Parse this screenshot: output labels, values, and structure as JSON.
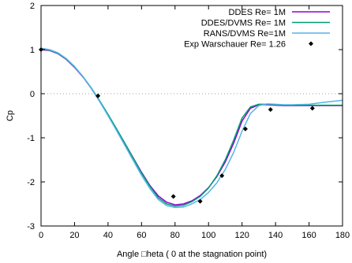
{
  "chart_data": {
    "type": "line",
    "title": "",
    "xlabel": "Angle □heta ( 0 at the stagnation point)",
    "ylabel": "Cp",
    "xlim": [
      0,
      180
    ],
    "ylim": [
      -3,
      2
    ],
    "xticks": [
      0,
      20,
      40,
      60,
      80,
      100,
      120,
      140,
      160,
      180
    ],
    "yticks": [
      -3,
      -2,
      -1,
      0,
      1,
      2
    ],
    "zero_line": "dotted",
    "legend_position": "top-right",
    "series": [
      {
        "name": "DDES Re= 1M",
        "style": "line",
        "color": "#9400d3",
        "x": [
          0,
          5,
          10,
          15,
          20,
          25,
          30,
          35,
          40,
          45,
          50,
          55,
          60,
          65,
          70,
          75,
          80,
          85,
          90,
          95,
          100,
          105,
          110,
          115,
          120,
          125,
          130,
          135,
          140,
          145,
          150,
          160,
          170,
          180
        ],
        "y": [
          1.0,
          0.98,
          0.91,
          0.78,
          0.6,
          0.38,
          0.12,
          -0.17,
          -0.48,
          -0.8,
          -1.12,
          -1.45,
          -1.78,
          -2.08,
          -2.32,
          -2.46,
          -2.52,
          -2.5,
          -2.43,
          -2.31,
          -2.13,
          -1.88,
          -1.55,
          -1.12,
          -0.62,
          -0.33,
          -0.25,
          -0.25,
          -0.26,
          -0.27,
          -0.27,
          -0.27,
          -0.27,
          -0.27
        ]
      },
      {
        "name": "DDES/DVMS Re= 1M",
        "style": "line",
        "color": "#009e73",
        "x": [
          0,
          5,
          10,
          15,
          20,
          25,
          30,
          35,
          40,
          45,
          50,
          55,
          60,
          65,
          70,
          75,
          80,
          85,
          90,
          95,
          100,
          105,
          110,
          115,
          120,
          125,
          130,
          135,
          140,
          145,
          150,
          160,
          170,
          180
        ],
        "y": [
          1.02,
          0.99,
          0.92,
          0.79,
          0.61,
          0.39,
          0.13,
          -0.16,
          -0.47,
          -0.79,
          -1.12,
          -1.46,
          -1.8,
          -2.1,
          -2.36,
          -2.5,
          -2.55,
          -2.53,
          -2.45,
          -2.33,
          -2.14,
          -1.86,
          -1.5,
          -1.05,
          -0.55,
          -0.3,
          -0.24,
          -0.24,
          -0.25,
          -0.26,
          -0.26,
          -0.26,
          -0.26,
          -0.26
        ]
      },
      {
        "name": "RANS/DVMS  Re=1M",
        "style": "line",
        "color": "#56b4e9",
        "x": [
          0,
          5,
          10,
          15,
          20,
          25,
          30,
          35,
          40,
          45,
          50,
          55,
          60,
          65,
          70,
          75,
          80,
          85,
          90,
          95,
          100,
          105,
          110,
          115,
          120,
          125,
          130,
          135,
          140,
          145,
          150,
          160,
          170,
          180
        ],
        "y": [
          1.03,
          1.0,
          0.93,
          0.8,
          0.62,
          0.39,
          0.12,
          -0.18,
          -0.5,
          -0.83,
          -1.17,
          -1.51,
          -1.85,
          -2.15,
          -2.4,
          -2.54,
          -2.58,
          -2.57,
          -2.5,
          -2.4,
          -2.24,
          -2.02,
          -1.72,
          -1.33,
          -0.85,
          -0.45,
          -0.27,
          -0.23,
          -0.24,
          -0.25,
          -0.25,
          -0.24,
          -0.19,
          -0.15
        ]
      },
      {
        "name": "Exp Warschauer Re= 1.26",
        "style": "points",
        "color": "#000000",
        "x": [
          0,
          34,
          79,
          95,
          108,
          122,
          137,
          162
        ],
        "y": [
          1.0,
          -0.05,
          -2.33,
          -2.44,
          -1.86,
          -0.8,
          -0.36,
          -0.33
        ]
      }
    ]
  }
}
